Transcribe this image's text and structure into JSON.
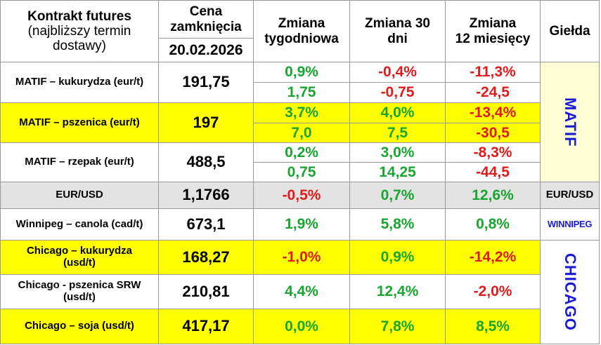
{
  "header": {
    "contract_bold": "Kontrakt futures",
    "contract_light_1": "(najbliższy termin",
    "contract_light_2": "dostawy)",
    "price_1": "Cena",
    "price_2": "zamknięcia",
    "date": "20.02.2026",
    "weekly_1": "Zmiana",
    "weekly_2": "tygodniowa",
    "d30_1": "Zmiana 30",
    "d30_2": "dni",
    "m12_1": "Zmiana",
    "m12_2": "12 miesięcy",
    "exchange": "Giełda"
  },
  "rows": [
    {
      "name": "MATIF – kukurydza  (eur/t)",
      "price": "191,75",
      "weekly": [
        "0,9%",
        "1,75"
      ],
      "d30": [
        "-0,4%",
        "-0,75"
      ],
      "m12": [
        "-11,3%",
        "-24,5"
      ]
    },
    {
      "name": "MATIF – pszenica (eur/t)",
      "price": "197",
      "weekly": [
        "3,7%",
        "7,0"
      ],
      "d30": [
        "4,0%",
        "7,5"
      ],
      "m12": [
        "-13,4%",
        "-30,5"
      ]
    },
    {
      "name": "MATIF – rzepak (eur/t)",
      "price": "488,5",
      "weekly": [
        "0,2%",
        "0,75"
      ],
      "d30": [
        "3,0%",
        "14,25"
      ],
      "m12": [
        "-8,3%",
        "-44,5"
      ]
    },
    {
      "name": "EUR/USD",
      "price": "1,1766",
      "weekly": [
        "-0,5%"
      ],
      "d30": [
        "0,7%"
      ],
      "m12": [
        "12,6%"
      ]
    },
    {
      "name": "Winnipeg – canola (cad/t)",
      "price": "673,1",
      "weekly": [
        "1,9%"
      ],
      "d30": [
        "5,8%"
      ],
      "m12": [
        "0,8%"
      ]
    },
    {
      "name_1": "Chicago – kukurydza",
      "name_2": "(usd/t)",
      "price": "168,27",
      "weekly": [
        "-1,0%"
      ],
      "d30": [
        "0,9%"
      ],
      "m12": [
        "-14,2%"
      ]
    },
    {
      "name_1": "Chicago - pszenica SRW",
      "name_2": "(usd/t)",
      "price": "210,81",
      "weekly": [
        "4,4%"
      ],
      "d30": [
        "12,4%"
      ],
      "m12": [
        "-2,0%"
      ]
    },
    {
      "name": "Chicago – soja (usd/t)",
      "price": "417,17",
      "weekly": [
        "0,0%"
      ],
      "d30": [
        "7,8%"
      ],
      "m12": [
        "8,5%"
      ]
    }
  ],
  "exchanges": {
    "matif": "MATIF",
    "eurusd": "EUR/USD",
    "winnipeg": "WINNIPEG",
    "chicago": "CHICAGO"
  },
  "colors": {
    "positive": "#1aa531",
    "negative": "#e11b1b",
    "highlight": "#ffff00",
    "neutral_row": "#e3e3e3",
    "exchange_panel": "#ffffd6",
    "exchange_text": "#1a1ad6"
  }
}
